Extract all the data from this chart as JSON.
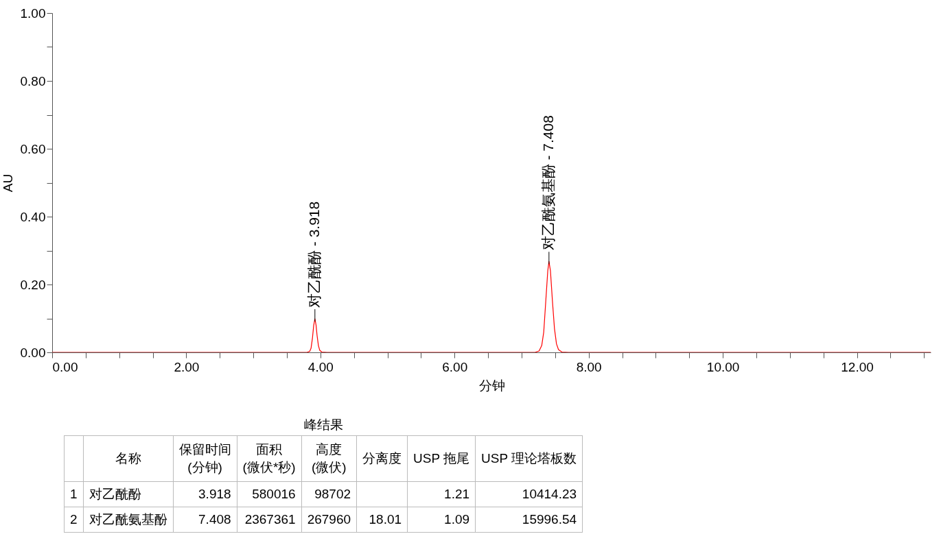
{
  "chart_data": [
    {
      "type": "line",
      "xlabel": "分钟",
      "ylabel": "AU",
      "xlim": [
        0,
        13.1
      ],
      "ylim": [
        0,
        1
      ],
      "xticks": [
        {
          "value": 0,
          "label": "0.00"
        },
        {
          "value": 0.5,
          "label": null
        },
        {
          "value": 1,
          "label": null
        },
        {
          "value": 1.5,
          "label": null
        },
        {
          "value": 2,
          "label": "2.00"
        },
        {
          "value": 2.5,
          "label": null
        },
        {
          "value": 3,
          "label": null
        },
        {
          "value": 3.5,
          "label": null
        },
        {
          "value": 4,
          "label": "4.00"
        },
        {
          "value": 4.5,
          "label": null
        },
        {
          "value": 5,
          "label": null
        },
        {
          "value": 5.5,
          "label": null
        },
        {
          "value": 6,
          "label": "6.00"
        },
        {
          "value": 6.5,
          "label": null
        },
        {
          "value": 7,
          "label": null
        },
        {
          "value": 7.5,
          "label": null
        },
        {
          "value": 8,
          "label": "8.00"
        },
        {
          "value": 8.5,
          "label": null
        },
        {
          "value": 9,
          "label": null
        },
        {
          "value": 9.5,
          "label": null
        },
        {
          "value": 10,
          "label": "10.00"
        },
        {
          "value": 10.5,
          "label": null
        },
        {
          "value": 11,
          "label": null
        },
        {
          "value": 11.5,
          "label": null
        },
        {
          "value": 12,
          "label": "12.00"
        },
        {
          "value": 12.5,
          "label": null
        },
        {
          "value": 13,
          "label": null
        }
      ],
      "yticks": [
        {
          "value": 0,
          "label": "0.00"
        },
        {
          "value": 0.1,
          "label": null
        },
        {
          "value": 0.2,
          "label": "0.20"
        },
        {
          "value": 0.3,
          "label": null
        },
        {
          "value": 0.4,
          "label": "0.40"
        },
        {
          "value": 0.5,
          "label": null
        },
        {
          "value": 0.6,
          "label": "0.60"
        },
        {
          "value": 0.7,
          "label": null
        },
        {
          "value": 0.8,
          "label": "0.80"
        },
        {
          "value": 0.9,
          "label": null
        },
        {
          "value": 1,
          "label": "1.00"
        }
      ],
      "series": [
        {
          "color": "#ff0000",
          "x": [
            0,
            3.8,
            3.84,
            3.86,
            3.88,
            3.9,
            3.918,
            3.935,
            3.95,
            3.97,
            3.99,
            4.02,
            4.1,
            7.2,
            7.26,
            7.3,
            7.33,
            7.36,
            7.39,
            7.408,
            7.43,
            7.46,
            7.49,
            7.52,
            7.55,
            7.6,
            7.7,
            13.1
          ],
          "values": [
            0,
            0,
            0.003,
            0.012,
            0.04,
            0.08,
            0.099,
            0.08,
            0.05,
            0.02,
            0.006,
            0.001,
            0,
            0,
            0.004,
            0.02,
            0.06,
            0.15,
            0.24,
            0.268,
            0.24,
            0.15,
            0.07,
            0.025,
            0.008,
            0.001,
            0,
            0
          ]
        }
      ],
      "annotations": [
        {
          "text": "对乙酰酚 - 3.918",
          "x": 3.918,
          "y": 0.099
        },
        {
          "text": "对乙酰氨基酚 - 7.408",
          "x": 7.408,
          "y": 0.268
        }
      ]
    },
    {
      "type": "other",
      "title": "峰结果",
      "annotations": [
        null,
        "名称",
        "保留时间\n(分钟)",
        "面积\n(微伏*秒)",
        "高度\n(微伏)",
        "分离度",
        "USP 拖尾",
        "USP 理论塔板数",
        "1",
        "对乙酰酚",
        "3.918",
        "580016",
        "98702",
        null,
        "1.21",
        "10414.23",
        "2",
        "对乙酰氨基酚",
        "7.408",
        "2367361",
        "267960",
        "18.01",
        "1.09",
        "15996.54"
      ]
    }
  ]
}
